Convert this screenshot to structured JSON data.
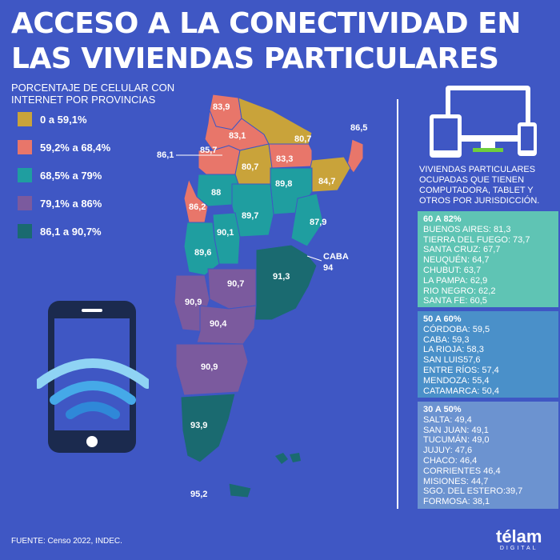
{
  "title": "ACCESO A LA CONECTIVIDAD EN LAS VIVIENDAS PARTICULARES",
  "subtitle": "PORCENTAJE DE CELULAR CON INTERNET POR PROVINCIAS",
  "legend": [
    {
      "label": "0 a 59,1%",
      "color": "#c9a33a"
    },
    {
      "label": "59,2% a 68,4%",
      "color": "#e8766a"
    },
    {
      "label": "68,5% a 79%",
      "color": "#1f9ea0"
    },
    {
      "label": "79,1% a 86%",
      "color": "#7b5a9e"
    },
    {
      "label": "86,1 a 90,7%",
      "color": "#1a6a70"
    }
  ],
  "map_labels": [
    {
      "text": "83,9"
    },
    {
      "text": "83,1"
    },
    {
      "text": "80,7"
    },
    {
      "text": "86,5"
    },
    {
      "text": "85,7"
    },
    {
      "text": "86,1"
    },
    {
      "text": "80,7"
    },
    {
      "text": "83,3"
    },
    {
      "text": "84,7"
    },
    {
      "text": "88"
    },
    {
      "text": "89,8"
    },
    {
      "text": "86,2"
    },
    {
      "text": "89,7"
    },
    {
      "text": "87,9"
    },
    {
      "text": "90,1"
    },
    {
      "text": "89,6"
    },
    {
      "text": "CABA"
    },
    {
      "text": "94"
    },
    {
      "text": "91,3"
    },
    {
      "text": "90,7"
    },
    {
      "text": "90,9"
    },
    {
      "text": "90,4"
    },
    {
      "text": "90,9"
    },
    {
      "text": "93,9"
    },
    {
      "text": "95,2"
    }
  ],
  "device_caption": "VIVIENDAS PARTICULARES OCUPADAS QUE TIENEN COMPUTADORA, TABLET Y OTROS POR JURISDICCIÓN.",
  "groups": [
    {
      "title": "60 A 82%",
      "items": [
        "BUENOS AIRES: 81,3",
        "TIERRA DEL FUEGO: 73,7",
        "SANTA CRUZ: 67,7",
        "NEUQUÉN: 64,7",
        "CHUBUT: 63,7",
        "LA PAMPA: 62,9",
        "RIO NEGRO: 62,2",
        "SANTA FE: 60,5"
      ]
    },
    {
      "title": "50 A 60%",
      "items": [
        "CÓRDOBA: 59,5",
        "CABA: 59,3",
        "LA RIOJA: 58,3",
        "SAN LUIS57,6",
        "ENTRE RÍOS: 57,4",
        "MENDOZA: 55,4",
        "CATAMARCA: 50,4"
      ]
    },
    {
      "title": "30 A 50%",
      "items": [
        "SALTA: 49,4",
        "SAN JUAN: 49,1",
        "TUCUMÁN: 49,0",
        "JUJUY: 47,6",
        "CHACO: 46,4",
        "CORRIENTES 46,4",
        "MISIONES: 44,7",
        "SGO. DEL ESTERO:39,7",
        "FORMOSA: 38,1"
      ]
    }
  ],
  "source": "FUENTE: Censo 2022, INDEC.",
  "brand": {
    "name": "télam",
    "sub": "DIGITAL"
  }
}
